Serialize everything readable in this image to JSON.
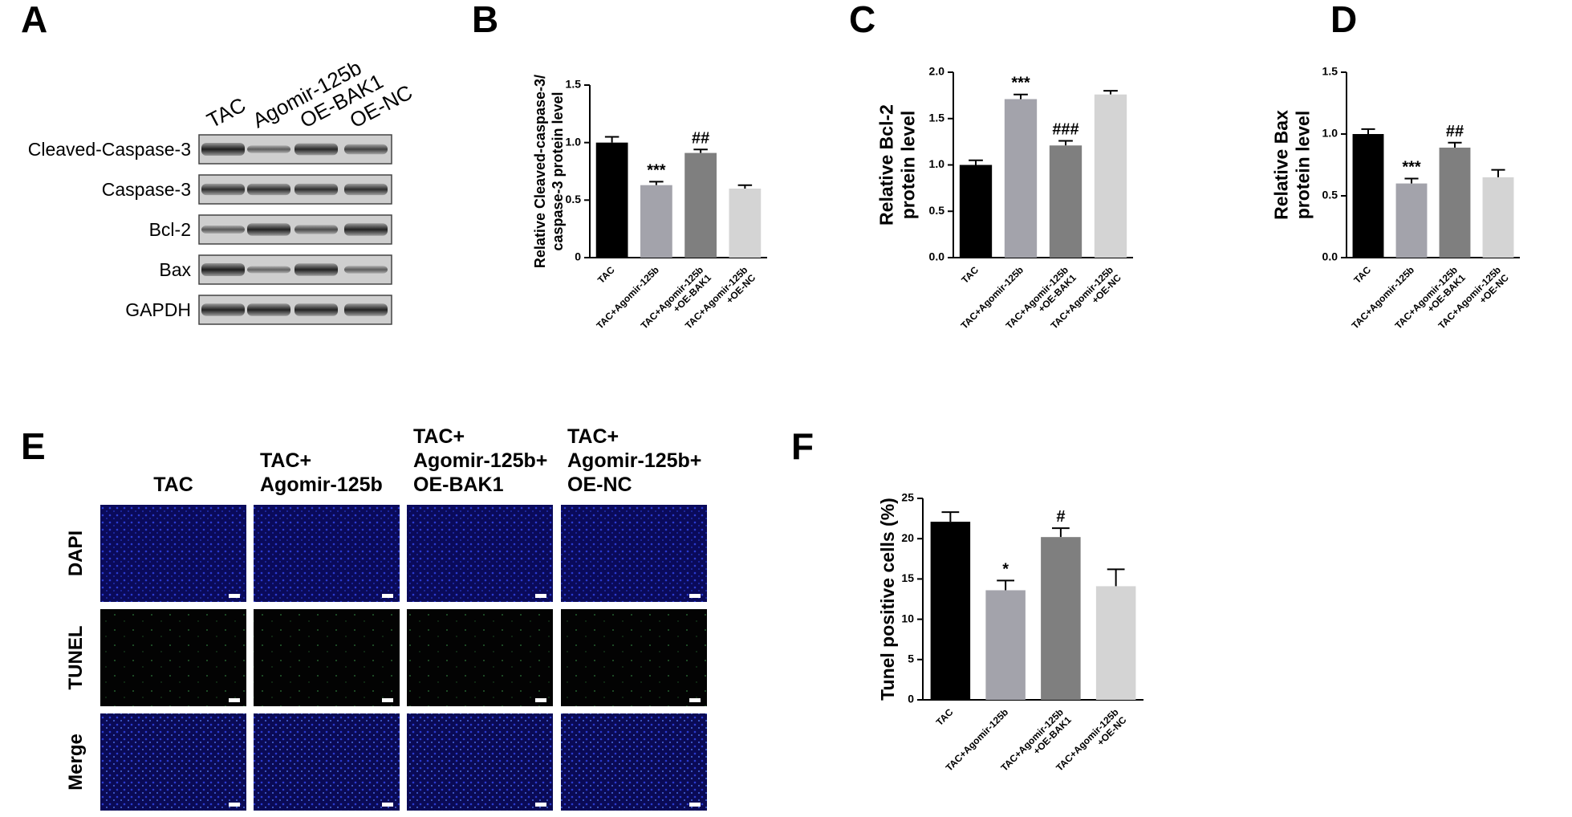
{
  "panel_a": {
    "panel": "A",
    "lanes": [
      "TAC",
      "Agomir-125b",
      "OE-BAK1",
      "OE-NC"
    ],
    "rows": [
      "Cleaved-Caspase-3",
      "Caspase-3",
      "Bcl-2",
      "Bax",
      "GAPDH"
    ]
  },
  "panel_e": {
    "panel": "E",
    "columns": [
      [
        "TAC"
      ],
      [
        "TAC+",
        "Agomir-125b"
      ],
      [
        "TAC+",
        "Agomir-125b+",
        "OE-BAK1"
      ],
      [
        "TAC+",
        "Agomir-125b+",
        "OE-NC"
      ]
    ],
    "rows": [
      "DAPI",
      "TUNEL",
      "Merge"
    ]
  },
  "chart_data": [
    {
      "type": "bar",
      "panel": "B",
      "ylabel": [
        "Relative Cleaved-caspase-3/",
        "caspase-3 protein level"
      ],
      "categories": [
        "TAC",
        "TAC+Agomir-125b",
        "TAC+Agomir-125b\n+OE-BAK1",
        "TAC+Agomir-125b\n+OE-NC"
      ],
      "values": [
        1.0,
        0.63,
        0.91,
        0.6
      ],
      "errors": [
        0.05,
        0.03,
        0.03,
        0.03
      ],
      "significance": [
        null,
        "***",
        "##",
        null
      ],
      "colors": [
        "#000000",
        "#a3a3ab",
        "#7f7f7f",
        "#d4d4d4"
      ],
      "ylim": [
        0,
        1.5
      ],
      "yticks": [
        0,
        0.5,
        {
          "value": 1,
          "label": "1.0"
        },
        1.5
      ]
    },
    {
      "type": "bar",
      "panel": "C",
      "ylabel": [
        "Relative Bcl-2",
        "protein level"
      ],
      "categories": [
        "TAC",
        "TAC+Agomir-125b",
        "TAC+Agomir-125b\n+OE-BAK1",
        "TAC+Agomir-125b\n+OE-NC"
      ],
      "values": [
        1.0,
        1.71,
        1.21,
        1.76
      ],
      "errors": [
        0.05,
        0.05,
        0.05,
        0.04
      ],
      "significance": [
        null,
        "***",
        "###",
        null
      ],
      "colors": [
        "#000000",
        "#a3a3ab",
        "#7f7f7f",
        "#d4d4d4"
      ],
      "ylim": [
        0,
        2
      ],
      "yticks": [
        {
          "value": 0,
          "label": "0.0"
        },
        0.5,
        {
          "value": 1,
          "label": "1.0"
        },
        1.5,
        {
          "value": 2,
          "label": "2.0"
        }
      ]
    },
    {
      "type": "bar",
      "panel": "D",
      "ylabel": [
        "Relative Bax",
        "protein level"
      ],
      "categories": [
        "TAC",
        "TAC+Agomir-125b",
        "TAC+Agomir-125b\n+OE-BAK1",
        "TAC+Agomir-125b\n+OE-NC"
      ],
      "values": [
        1.0,
        0.6,
        0.89,
        0.65
      ],
      "errors": [
        0.04,
        0.04,
        0.04,
        0.06
      ],
      "significance": [
        null,
        "***",
        "##",
        null
      ],
      "colors": [
        "#000000",
        "#a3a3ab",
        "#7f7f7f",
        "#d4d4d4"
      ],
      "ylim": [
        0,
        1.5
      ],
      "yticks": [
        {
          "value": 0,
          "label": "0.0"
        },
        0.5,
        {
          "value": 1,
          "label": "1.0"
        },
        1.5
      ]
    },
    {
      "type": "bar",
      "panel": "F",
      "ylabel": [
        "Tunel positive cells (%)"
      ],
      "categories": [
        "TAC",
        "TAC+Agomir-125b",
        "TAC+Agomir-125b\n+OE-BAK1",
        "TAC+Agomir-125b\n+OE-NC"
      ],
      "values": [
        22.1,
        13.6,
        20.2,
        14.1
      ],
      "errors": [
        1.2,
        1.2,
        1.1,
        2.1
      ],
      "significance": [
        null,
        "*",
        "#",
        null
      ],
      "colors": [
        "#000000",
        "#a3a3ab",
        "#7f7f7f",
        "#d4d4d4"
      ],
      "ylim": [
        0,
        25
      ],
      "yticks": [
        0,
        5,
        10,
        15,
        20,
        25
      ]
    }
  ]
}
